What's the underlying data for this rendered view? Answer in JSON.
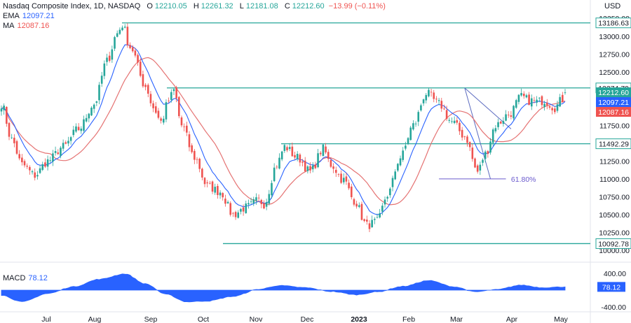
{
  "header": {
    "title": "Nasdaq Composite Index, 1D, NASDAQ",
    "ohlc": [
      {
        "k": "O",
        "v": "12210.05"
      },
      {
        "k": "H",
        "v": "12261.32"
      },
      {
        "k": "L",
        "v": "12181.08"
      },
      {
        "k": "C",
        "v": "12212.60"
      }
    ],
    "change": "−13.99 (−0.11%)",
    "ema_label": "EMA",
    "ema_value": "12097.21",
    "ma_label": "MA",
    "ma_value": "12087.16",
    "currency": "USD"
  },
  "macd_panel": {
    "label": "MACD",
    "value": "78.12"
  },
  "colors": {
    "up": "#26a69a",
    "down": "#ef5350",
    "ema": "#2962ff",
    "ma": "#e57373",
    "level": "#26a69a",
    "macd_fill": "#2962ff",
    "close_badge": "#26a69a",
    "ma_badge": "#ef5350",
    "ema_badge": "#2962ff",
    "fib": "#6a5acd",
    "text_red": "#ef5350"
  },
  "chart_data": {
    "type": "candlestick",
    "price_axis": {
      "ylim": [
        9960,
        13370
      ],
      "ticks": [
        "13250.00",
        "13000.00",
        "12750.00",
        "12500.00",
        "12250.00",
        "12000.00",
        "11750.00",
        "11500.00",
        "11250.00",
        "11000.00",
        "10750.00",
        "10500.00",
        "10250.00",
        "10000.00"
      ]
    },
    "x_labels": [
      {
        "label": "Jul",
        "bold": false
      },
      {
        "label": "Aug",
        "bold": false
      },
      {
        "label": "Sep",
        "bold": false
      },
      {
        "label": "Oct",
        "bold": false
      },
      {
        "label": "Nov",
        "bold": false
      },
      {
        "label": "Dec",
        "bold": false
      },
      {
        "label": "2023",
        "bold": true
      },
      {
        "label": "Feb",
        "bold": false
      },
      {
        "label": "Mar",
        "bold": false
      },
      {
        "label": "Apr",
        "bold": false
      },
      {
        "label": "May",
        "bold": false
      }
    ],
    "horizontal_levels": [
      "13186.63",
      "12274.79",
      "11492.29",
      "10092.78"
    ],
    "price_badges": [
      {
        "label": "12212.60",
        "value": 12212.6,
        "kind": "close"
      },
      {
        "label": "12097.21",
        "value": 12097.21,
        "kind": "ema"
      },
      {
        "label": "12087.16",
        "value": 12087.16,
        "kind": "ma"
      }
    ],
    "annotation": "61.80%",
    "annotation_level": 11000,
    "series_anchors": [
      {
        "i": 0,
        "p": 12050
      },
      {
        "i": 4,
        "p": 11550
      },
      {
        "i": 8,
        "p": 11200
      },
      {
        "i": 13,
        "p": 11050
      },
      {
        "i": 18,
        "p": 11250
      },
      {
        "i": 24,
        "p": 11450
      },
      {
        "i": 30,
        "p": 11700
      },
      {
        "i": 36,
        "p": 12050
      },
      {
        "i": 41,
        "p": 12650
      },
      {
        "i": 45,
        "p": 13040
      },
      {
        "i": 47,
        "p": 13160
      },
      {
        "i": 50,
        "p": 12850
      },
      {
        "i": 56,
        "p": 12300
      },
      {
        "i": 59,
        "p": 12000
      },
      {
        "i": 62,
        "p": 11800
      },
      {
        "i": 65,
        "p": 12100
      },
      {
        "i": 67,
        "p": 12240
      },
      {
        "i": 70,
        "p": 11750
      },
      {
        "i": 75,
        "p": 11300
      },
      {
        "i": 80,
        "p": 10900
      },
      {
        "i": 85,
        "p": 10820
      },
      {
        "i": 90,
        "p": 10500
      },
      {
        "i": 95,
        "p": 10600
      },
      {
        "i": 100,
        "p": 10700
      },
      {
        "i": 102,
        "p": 10650
      },
      {
        "i": 107,
        "p": 11200
      },
      {
        "i": 110,
        "p": 11450
      },
      {
        "i": 115,
        "p": 11300
      },
      {
        "i": 120,
        "p": 11100
      },
      {
        "i": 125,
        "p": 11420
      },
      {
        "i": 128,
        "p": 11200
      },
      {
        "i": 133,
        "p": 10980
      },
      {
        "i": 137,
        "p": 10700
      },
      {
        "i": 142,
        "p": 10350
      },
      {
        "i": 146,
        "p": 10400
      },
      {
        "i": 150,
        "p": 10780
      },
      {
        "i": 155,
        "p": 11300
      },
      {
        "i": 160,
        "p": 11750
      },
      {
        "i": 165,
        "p": 12200
      },
      {
        "i": 170,
        "p": 12050
      },
      {
        "i": 175,
        "p": 11800
      },
      {
        "i": 180,
        "p": 11600
      },
      {
        "i": 185,
        "p": 11100
      },
      {
        "i": 188,
        "p": 11350
      },
      {
        "i": 192,
        "p": 11750
      },
      {
        "i": 197,
        "p": 11900
      },
      {
        "i": 202,
        "p": 12150
      },
      {
        "i": 205,
        "p": 12100
      },
      {
        "i": 208,
        "p": 12080
      },
      {
        "i": 211,
        "p": 12100
      },
      {
        "i": 215,
        "p": 12000
      },
      {
        "i": 218,
        "p": 12120
      },
      {
        "i": 219,
        "p": 12212.6
      }
    ],
    "macd": {
      "ylim": [
        -520,
        520
      ],
      "ticks": [
        "400.00",
        "-400.00"
      ],
      "anchors": [
        {
          "i": 0,
          "v": -120
        },
        {
          "i": 8,
          "v": -280
        },
        {
          "i": 18,
          "v": -80
        },
        {
          "i": 28,
          "v": 80
        },
        {
          "i": 38,
          "v": 260
        },
        {
          "i": 48,
          "v": 390
        },
        {
          "i": 56,
          "v": 150
        },
        {
          "i": 64,
          "v": -100
        },
        {
          "i": 72,
          "v": -280
        },
        {
          "i": 80,
          "v": -260
        },
        {
          "i": 90,
          "v": -150
        },
        {
          "i": 100,
          "v": 20
        },
        {
          "i": 108,
          "v": 110
        },
        {
          "i": 118,
          "v": 60
        },
        {
          "i": 128,
          "v": -30
        },
        {
          "i": 138,
          "v": -110
        },
        {
          "i": 146,
          "v": -40
        },
        {
          "i": 156,
          "v": 90
        },
        {
          "i": 166,
          "v": 230
        },
        {
          "i": 176,
          "v": 80
        },
        {
          "i": 184,
          "v": -40
        },
        {
          "i": 192,
          "v": 10
        },
        {
          "i": 202,
          "v": 120
        },
        {
          "i": 210,
          "v": 60
        },
        {
          "i": 219,
          "v": 78.12
        }
      ]
    }
  }
}
